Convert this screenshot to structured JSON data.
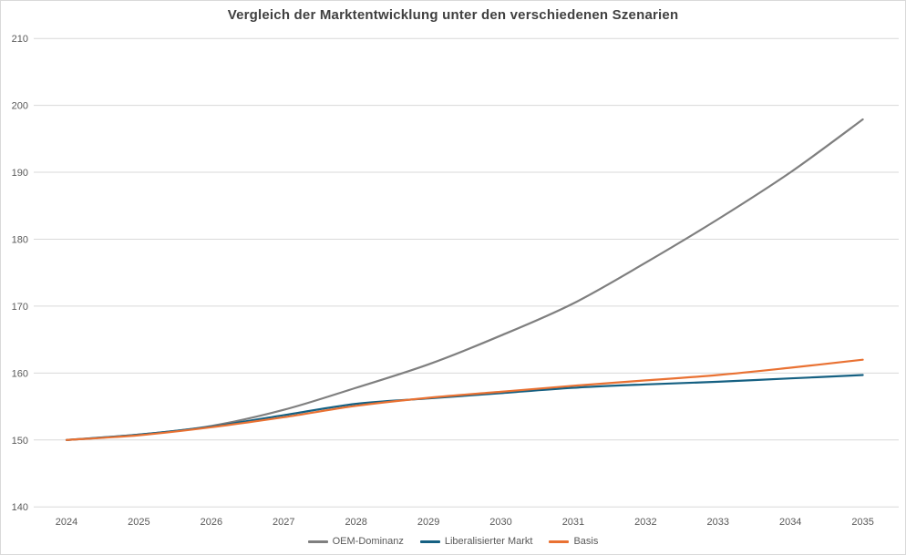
{
  "title": "Vergleich der Marktentwicklung unter den verschiedenen Szenarien",
  "colors": {
    "title_text": "#404040",
    "axis_text": "#595959",
    "gridline": "#d9d9d9",
    "chart_border": "#d9d9d9",
    "background": "#ffffff",
    "series_oem": "#7f7f7f",
    "series_liberalisiert": "#156082",
    "series_basis": "#e97132"
  },
  "chart_data": {
    "type": "line",
    "title": "Vergleich der Marktentwicklung unter den verschiedenen Szenarien",
    "xlabel": "",
    "ylabel": "",
    "x": [
      2024,
      2025,
      2026,
      2027,
      2028,
      2029,
      2030,
      2031,
      2032,
      2033,
      2034,
      2035
    ],
    "series": [
      {
        "name": "OEM-Dominanz",
        "color": "#7f7f7f",
        "values": [
          150.0,
          150.8,
          152.1,
          154.5,
          157.8,
          161.3,
          165.6,
          170.4,
          176.5,
          183.0,
          190.0,
          197.9
        ]
      },
      {
        "name": "Liberalisierter Markt",
        "color": "#156082",
        "values": [
          150.0,
          150.8,
          152.0,
          153.7,
          155.4,
          156.2,
          157.0,
          157.8,
          158.3,
          158.7,
          159.2,
          159.7
        ]
      },
      {
        "name": "Basis",
        "color": "#e97132",
        "values": [
          150.0,
          150.7,
          151.9,
          153.4,
          155.1,
          156.3,
          157.2,
          158.1,
          158.9,
          159.7,
          160.8,
          162.0
        ]
      }
    ],
    "ylim": [
      140,
      210
    ],
    "yticks": [
      140,
      150,
      160,
      170,
      180,
      190,
      200,
      210
    ],
    "grid": "horizontal",
    "legend_position": "bottom",
    "line_style": "smooth"
  }
}
